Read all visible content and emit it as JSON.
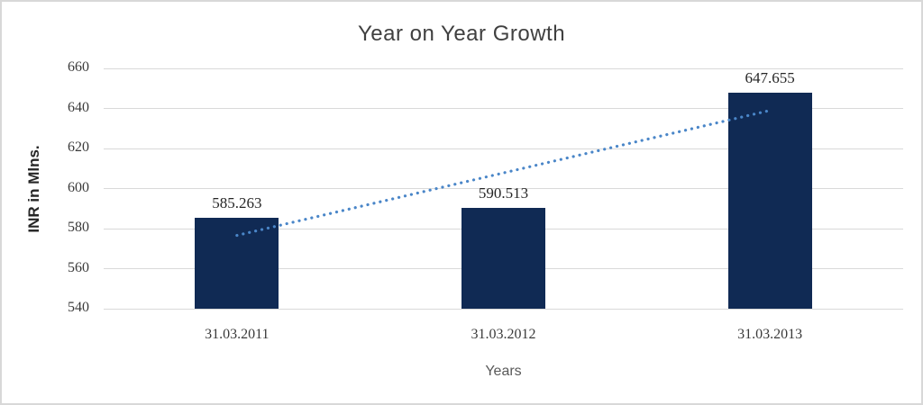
{
  "chart_data": {
    "type": "bar",
    "title": "Year on Year Growth",
    "categories": [
      "31.03.2011",
      "31.03.2012",
      "31.03.2013"
    ],
    "values": [
      585.263,
      590.513,
      647.655
    ],
    "data_labels": [
      "585.263",
      "590.513",
      "647.655"
    ],
    "xlabel": "Years",
    "ylabel": "INR in Mlns.",
    "ylim": [
      540,
      660
    ],
    "ytick_step": 20,
    "ytick_labels": [
      "540",
      "560",
      "580",
      "600",
      "620",
      "640",
      "660"
    ],
    "grid": true,
    "legend": false,
    "trendline": {
      "type": "linear",
      "style": "dotted"
    },
    "colors": {
      "bar": "#102a54",
      "trendline": "#4a86c8",
      "gridline": "#d9d9d9",
      "title_text": "#404040",
      "axis_title_text": "#595959",
      "ylabel_text": "#262626",
      "frame_border": "#d8d8d8"
    }
  }
}
